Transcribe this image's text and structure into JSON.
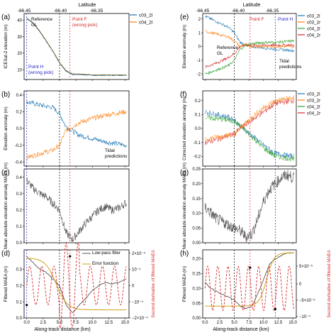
{
  "top_axis": {
    "label": "Latitude",
    "left_ticks": [
      "-66.45",
      "-66.40",
      "-66.35"
    ],
    "right_ticks": [
      "-66.45",
      "-66.40",
      "-66.35"
    ]
  },
  "bottom_axis": {
    "label": "Along-track distance (km)",
    "ticks": [
      "0.0",
      "2.5",
      "5.0",
      "7.5",
      "10.0",
      "12.5",
      "15.0"
    ]
  },
  "colors": {
    "c03_2l": "#1f77b4",
    "c04_2l": "#ff7f0e",
    "c03_2r": "#1f77b4",
    "c04_2r": "#ff7f0e",
    "c03_2l_r": "#2ca02c",
    "c04_2l_r": "#d62728",
    "blue_line": "#1f1fcc",
    "red_line": "#d62728",
    "gray": "#555555",
    "gold": "#d4a017"
  },
  "chart_data": [
    {
      "panel": "(a)",
      "type": "line",
      "ylabel": "ICESat-2 elevation (m)",
      "yticks": [
        "10",
        "20",
        "30",
        "40"
      ],
      "ylim": [
        4,
        44
      ],
      "series": [
        {
          "name": "c03_2l"
        },
        {
          "name": "c04_2l"
        }
      ],
      "annotations": [
        "Reference GL",
        "Point F (wrong pick)",
        "Point H (wrong pick)"
      ],
      "x": [
        0,
        1,
        2,
        3,
        4,
        5,
        6,
        7,
        8,
        10,
        12,
        15
      ],
      "values": [
        41,
        38,
        33,
        27,
        21,
        14,
        9,
        7,
        7,
        6.5,
        6.5,
        6.5
      ]
    },
    {
      "panel": "(b)",
      "type": "line",
      "ylabel": "Elevation anomaly (m)",
      "yticks": [
        "-0.4",
        "-0.2",
        "0.0",
        "0.2",
        "0.4"
      ],
      "ylim": [
        -0.45,
        0.45
      ],
      "annotations": [
        "Tidal predictions"
      ],
      "x": [
        0,
        2,
        4,
        5,
        6,
        8,
        10,
        12,
        15
      ],
      "series": [
        {
          "name": "c03_2l",
          "values": [
            0.32,
            0.28,
            0.25,
            0.18,
            0.02,
            -0.08,
            -0.12,
            -0.16,
            -0.2
          ]
        },
        {
          "name": "c04_2l",
          "values": [
            -0.35,
            -0.3,
            -0.26,
            -0.2,
            -0.02,
            0.07,
            0.12,
            0.16,
            0.2
          ]
        }
      ]
    },
    {
      "panel": "(c)",
      "type": "line",
      "ylabel": "Mean absolute elevation anomaly MAEA (m)",
      "yticks": [
        "0.0",
        "0.1",
        "0.2",
        "0.3",
        "0.4"
      ],
      "ylim": [
        0,
        0.45
      ],
      "x": [
        0,
        1,
        2,
        3,
        4,
        5,
        6,
        7,
        8,
        9,
        10,
        11,
        12,
        13,
        14,
        15
      ],
      "values": [
        0.38,
        0.33,
        0.3,
        0.28,
        0.24,
        0.2,
        0.06,
        0.02,
        0.07,
        0.12,
        0.16,
        0.2,
        0.22,
        0.2,
        0.21,
        0.24
      ]
    },
    {
      "panel": "(d)",
      "type": "line",
      "ylabel": "Filtered MAEA (m)",
      "ylabel2": "Second derivative of filtered MAEA",
      "yticks": [
        "0.0",
        "0.1",
        "0.2",
        "0.3"
      ],
      "y2ticks": [
        "2×10⁻⁴",
        "10⁻⁴",
        "0",
        "−10⁻⁴",
        "−2×10⁻⁴"
      ],
      "ylim": [
        0,
        0.42
      ],
      "series": [
        {
          "name": "Low-pass filter"
        },
        {
          "name": "Error function"
        }
      ],
      "x": [
        0,
        1,
        2,
        3,
        4,
        5,
        6,
        7,
        8,
        9,
        10,
        11,
        12,
        13,
        14,
        15
      ],
      "values": [
        0.38,
        0.34,
        0.3,
        0.28,
        0.24,
        0.2,
        0.08,
        0.03,
        0.08,
        0.12,
        0.17,
        0.2,
        0.22,
        0.21,
        0.22,
        0.24
      ]
    },
    {
      "panel": "(e)",
      "type": "line",
      "ylabel": "Elevation anomaly (m)",
      "yticks": [
        "-2",
        "-1",
        "0",
        "1",
        "2"
      ],
      "ylim": [
        -2.4,
        2.4
      ],
      "annotations": [
        "Reference GL",
        "Point F",
        "Point H",
        "Tidal predictions"
      ],
      "x": [
        0,
        2,
        4,
        5,
        6,
        7,
        8,
        10,
        12,
        15
      ],
      "series": [
        {
          "name": "c03_2l",
          "values": [
            2.2,
            1.8,
            1.4,
            1.0,
            0.3,
            0.1,
            0.0,
            -0.1,
            -0.2,
            -0.3
          ]
        },
        {
          "name": "c04_2l",
          "values": [
            -1.5,
            -1.2,
            -0.8,
            -0.5,
            0.0,
            0.1,
            0.1,
            0.1,
            0.1,
            0.1
          ]
        },
        {
          "name": "c03_2r",
          "values": [
            -2.0,
            -1.7,
            -1.4,
            -1.0,
            -0.2,
            0.1,
            0.2,
            0.3,
            0.3,
            0.4
          ]
        },
        {
          "name": "c04_2r",
          "values": [
            1.1,
            0.9,
            0.7,
            0.4,
            0.0,
            0.1,
            0.0,
            0.0,
            0.0,
            0.0
          ]
        }
      ]
    },
    {
      "panel": "(f)",
      "type": "line",
      "ylabel": "Corrected elevation anomaly (m)",
      "yticks": [
        "-0.2",
        "-0.1",
        "0.0",
        "0.1",
        "0.2"
      ],
      "ylim": [
        -0.27,
        0.27
      ],
      "x": [
        0,
        2,
        4,
        5,
        6,
        8,
        10,
        12,
        15
      ],
      "series": [
        {
          "name": "c03_2l",
          "values": [
            0.12,
            0.1,
            0.08,
            0.06,
            0.02,
            -0.05,
            -0.12,
            -0.18,
            -0.2
          ]
        },
        {
          "name": "c04_2l",
          "values": [
            -0.1,
            -0.08,
            -0.05,
            -0.04,
            0.0,
            0.06,
            0.12,
            0.18,
            0.2
          ]
        },
        {
          "name": "c03_2r",
          "values": [
            0.08,
            0.07,
            0.06,
            0.05,
            0.02,
            -0.06,
            -0.14,
            -0.2,
            -0.22
          ]
        },
        {
          "name": "c04_2r",
          "values": [
            -0.08,
            -0.06,
            -0.05,
            -0.04,
            0.0,
            0.08,
            0.15,
            0.2,
            0.22
          ]
        }
      ]
    },
    {
      "panel": "(g)",
      "type": "line",
      "ylabel": "Mean absolute elevation anomaly MAEA (m)",
      "yticks": [
        "0.00",
        "0.05",
        "0.10",
        "0.15",
        "0.20",
        "0.25"
      ],
      "ylim": [
        0,
        0.25
      ],
      "x": [
        0,
        1,
        2,
        3,
        4,
        5,
        6,
        7,
        8,
        9,
        10,
        11,
        12,
        13,
        14,
        15
      ],
      "values": [
        0.12,
        0.1,
        0.08,
        0.07,
        0.06,
        0.05,
        0.04,
        0.02,
        0.03,
        0.08,
        0.14,
        0.18,
        0.2,
        0.22,
        0.23,
        0.22
      ]
    },
    {
      "panel": "(h)",
      "type": "line",
      "ylabel": "Filtered MAEA (m)",
      "ylabel2": "Second derivative of filtered MAEA",
      "yticks": [
        "0.00",
        "0.05",
        "0.10",
        "0.15",
        "0.20"
      ],
      "y2ticks": [
        "5×10⁻⁵",
        "0",
        "−5×10⁻⁵",
        "−10⁻⁴"
      ],
      "ylim": [
        0,
        0.23
      ],
      "x": [
        0,
        1,
        2,
        3,
        4,
        5,
        6,
        7,
        8,
        9,
        10,
        11,
        12,
        13,
        14,
        15
      ],
      "values": [
        0.12,
        0.1,
        0.09,
        0.08,
        0.07,
        0.06,
        0.04,
        0.03,
        0.04,
        0.08,
        0.13,
        0.18,
        0.2,
        0.21,
        0.22,
        0.22
      ]
    }
  ]
}
